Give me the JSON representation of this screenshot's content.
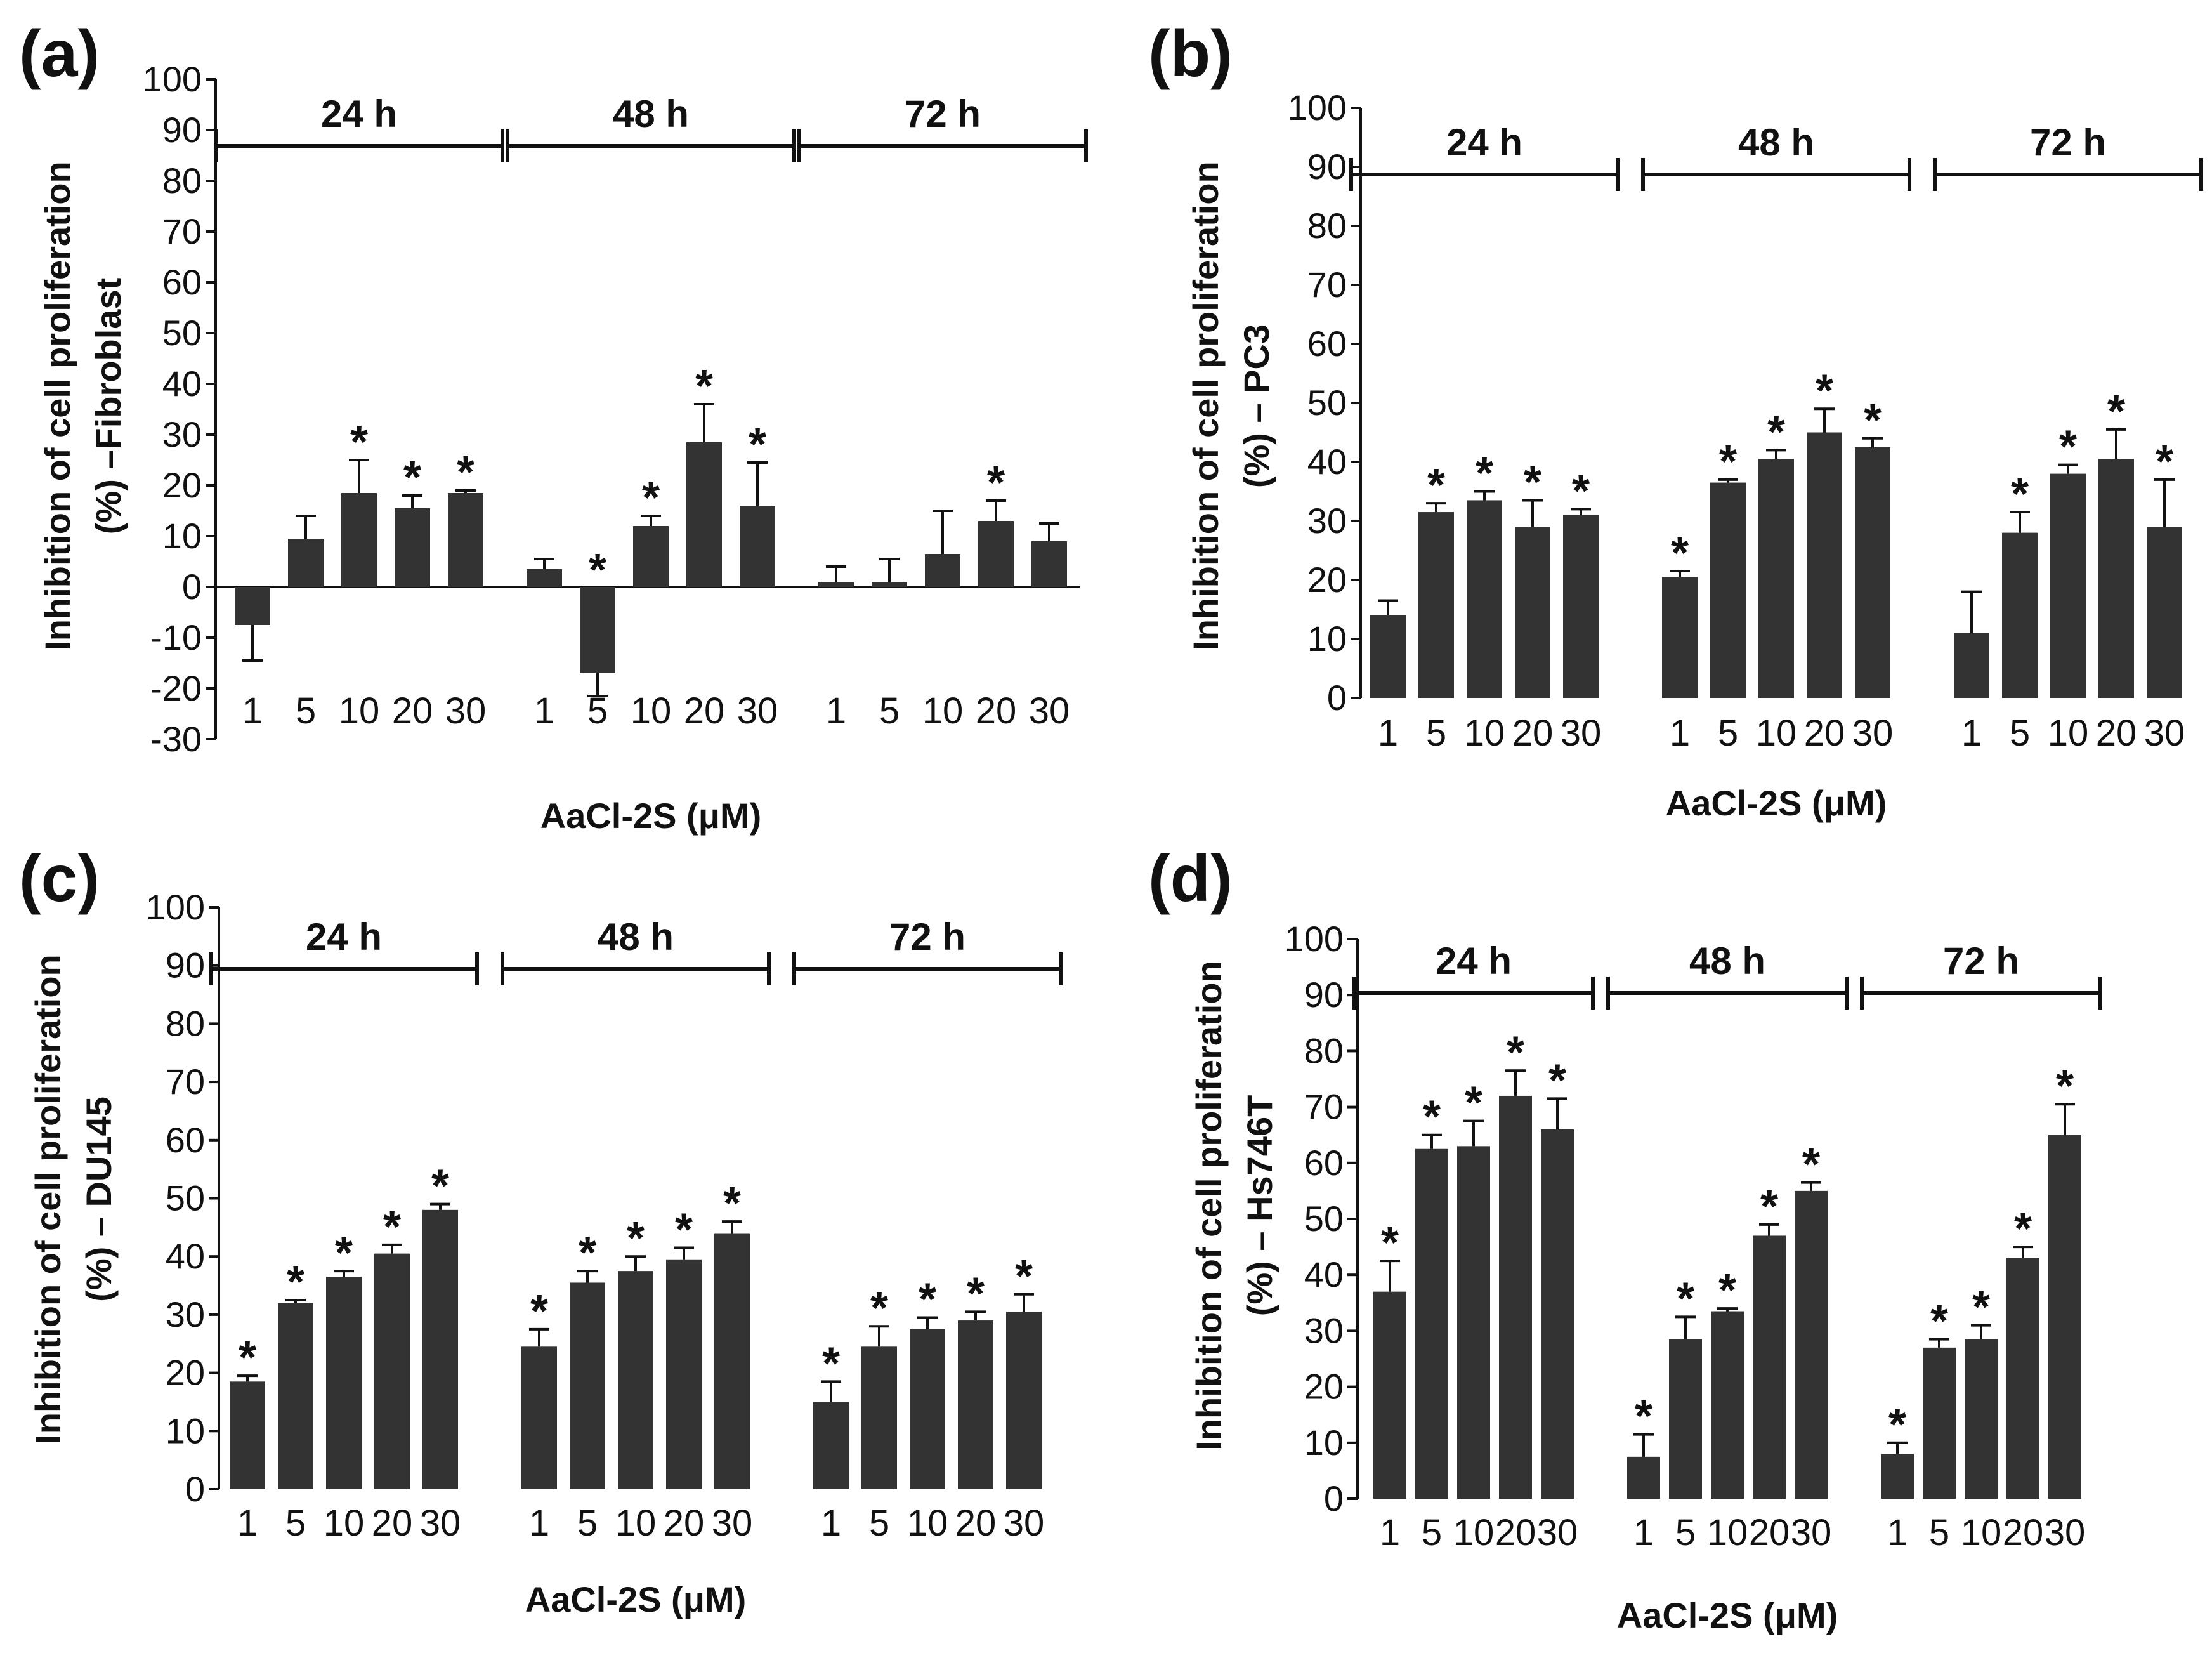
{
  "chart_data": [
    {
      "panel": "(a)",
      "type": "bar",
      "ylabel_line1": "Inhibition of cell proliferation",
      "ylabel_line2": "(%) –Fibroblast",
      "xlabel": "AaCl-2S (μM)",
      "ylim": [
        -30,
        100
      ],
      "yticks": [
        -30,
        -20,
        -10,
        0,
        10,
        20,
        30,
        40,
        50,
        60,
        70,
        80,
        90,
        100
      ],
      "ytick_labels": [
        "-30",
        "-20",
        "-10",
        "0",
        "10",
        "20",
        "30",
        "40",
        "50",
        "60",
        "70",
        "80",
        "90",
        "100"
      ],
      "categories": [
        "1",
        "5",
        "10",
        "20",
        "30"
      ],
      "groups": [
        {
          "label": "24 h",
          "values": [
            -7.5,
            9.5,
            18.5,
            15.5,
            18.5
          ],
          "errors": [
            7,
            4.5,
            6.5,
            2.5,
            0.5
          ],
          "significant": [
            false,
            false,
            true,
            true,
            true
          ]
        },
        {
          "label": "48 h",
          "values": [
            3.5,
            -17,
            12,
            28.5,
            16
          ],
          "errors": [
            2,
            4.5,
            2,
            7.5,
            8.5
          ],
          "significant": [
            false,
            true,
            true,
            true,
            true
          ]
        },
        {
          "label": "72 h",
          "values": [
            1,
            1,
            6.5,
            13,
            9
          ],
          "errors": [
            3,
            4.5,
            8.5,
            4,
            3.5
          ],
          "significant": [
            false,
            false,
            false,
            true,
            false
          ]
        }
      ]
    },
    {
      "panel": "(b)",
      "type": "bar",
      "ylabel_line1": "Inhibition of cell proliferation",
      "ylabel_line2": "(%) – PC3",
      "xlabel": "AaCl-2S (μM)",
      "ylim": [
        0,
        100
      ],
      "yticks": [
        0,
        10,
        20,
        30,
        40,
        50,
        60,
        70,
        80,
        90,
        100
      ],
      "ytick_labels": [
        "0",
        "10",
        "20",
        "30",
        "40",
        "50",
        "60",
        "70",
        "80",
        "90",
        "100"
      ],
      "categories": [
        "1",
        "5",
        "10",
        "20",
        "30"
      ],
      "groups": [
        {
          "label": "24 h",
          "values": [
            14,
            31.5,
            33.5,
            29,
            31
          ],
          "errors": [
            2.5,
            1.5,
            1.5,
            4.5,
            1
          ],
          "significant": [
            false,
            true,
            true,
            true,
            true
          ]
        },
        {
          "label": "48 h",
          "values": [
            20.5,
            36.5,
            40.5,
            45,
            42.5
          ],
          "errors": [
            1,
            0.5,
            1.5,
            4,
            1.5
          ],
          "significant": [
            true,
            true,
            true,
            true,
            true
          ]
        },
        {
          "label": "72 h",
          "values": [
            11,
            28,
            38,
            40.5,
            29
          ],
          "errors": [
            7,
            3.5,
            1.5,
            5,
            8
          ],
          "significant": [
            false,
            true,
            true,
            true,
            true
          ]
        }
      ]
    },
    {
      "panel": "(c)",
      "type": "bar",
      "ylabel_line1": "Inhibition of cell proliferation",
      "ylabel_line2": "(%) – DU145",
      "xlabel": "AaCl-2S (μM)",
      "ylim": [
        0,
        100
      ],
      "yticks": [
        0,
        10,
        20,
        30,
        40,
        50,
        60,
        70,
        80,
        90,
        100
      ],
      "ytick_labels": [
        "0",
        "10",
        "20",
        "30",
        "40",
        "50",
        "60",
        "70",
        "80",
        "90",
        "100"
      ],
      "categories": [
        "1",
        "5",
        "10",
        "20",
        "30"
      ],
      "groups": [
        {
          "label": "24 h",
          "values": [
            18.5,
            32,
            36.5,
            40.5,
            48
          ],
          "errors": [
            1,
            0.5,
            1,
            1.5,
            1
          ],
          "significant": [
            true,
            true,
            true,
            true,
            true
          ]
        },
        {
          "label": "48 h",
          "values": [
            24.5,
            35.5,
            37.5,
            39.5,
            44
          ],
          "errors": [
            3,
            2,
            2.5,
            2,
            2
          ],
          "significant": [
            true,
            true,
            true,
            true,
            true
          ]
        },
        {
          "label": "72 h",
          "values": [
            15,
            24.5,
            27.5,
            29,
            30.5
          ],
          "errors": [
            3.5,
            3.5,
            2,
            1.5,
            3
          ],
          "significant": [
            true,
            true,
            true,
            true,
            true
          ]
        }
      ]
    },
    {
      "panel": "(d)",
      "type": "bar",
      "ylabel_line1": "Inhibition of cell proliferation",
      "ylabel_line2": "(%) – Hs746T",
      "xlabel": "AaCl-2S (μM)",
      "ylim": [
        0,
        100
      ],
      "yticks": [
        0,
        10,
        20,
        30,
        40,
        50,
        60,
        70,
        80,
        90,
        100
      ],
      "ytick_labels": [
        "0",
        "10",
        "20",
        "30",
        "40",
        "50",
        "60",
        "70",
        "80",
        "90",
        "100"
      ],
      "categories": [
        "1",
        "5",
        "10",
        "20",
        "30"
      ],
      "groups": [
        {
          "label": "24 h",
          "values": [
            37,
            62.5,
            63,
            72,
            66
          ],
          "errors": [
            5.5,
            2.5,
            4.5,
            4.5,
            5.5
          ],
          "significant": [
            true,
            true,
            true,
            true,
            true
          ]
        },
        {
          "label": "48 h",
          "values": [
            7.5,
            28.5,
            33.5,
            47,
            55
          ],
          "errors": [
            4,
            4,
            0.5,
            2,
            1.5
          ],
          "significant": [
            true,
            true,
            true,
            true,
            true
          ]
        },
        {
          "label": "72 h",
          "values": [
            8,
            27,
            28.5,
            43,
            65
          ],
          "errors": [
            2,
            1.5,
            2.5,
            2,
            5.5
          ],
          "significant": [
            true,
            true,
            true,
            true,
            true
          ]
        }
      ]
    }
  ]
}
